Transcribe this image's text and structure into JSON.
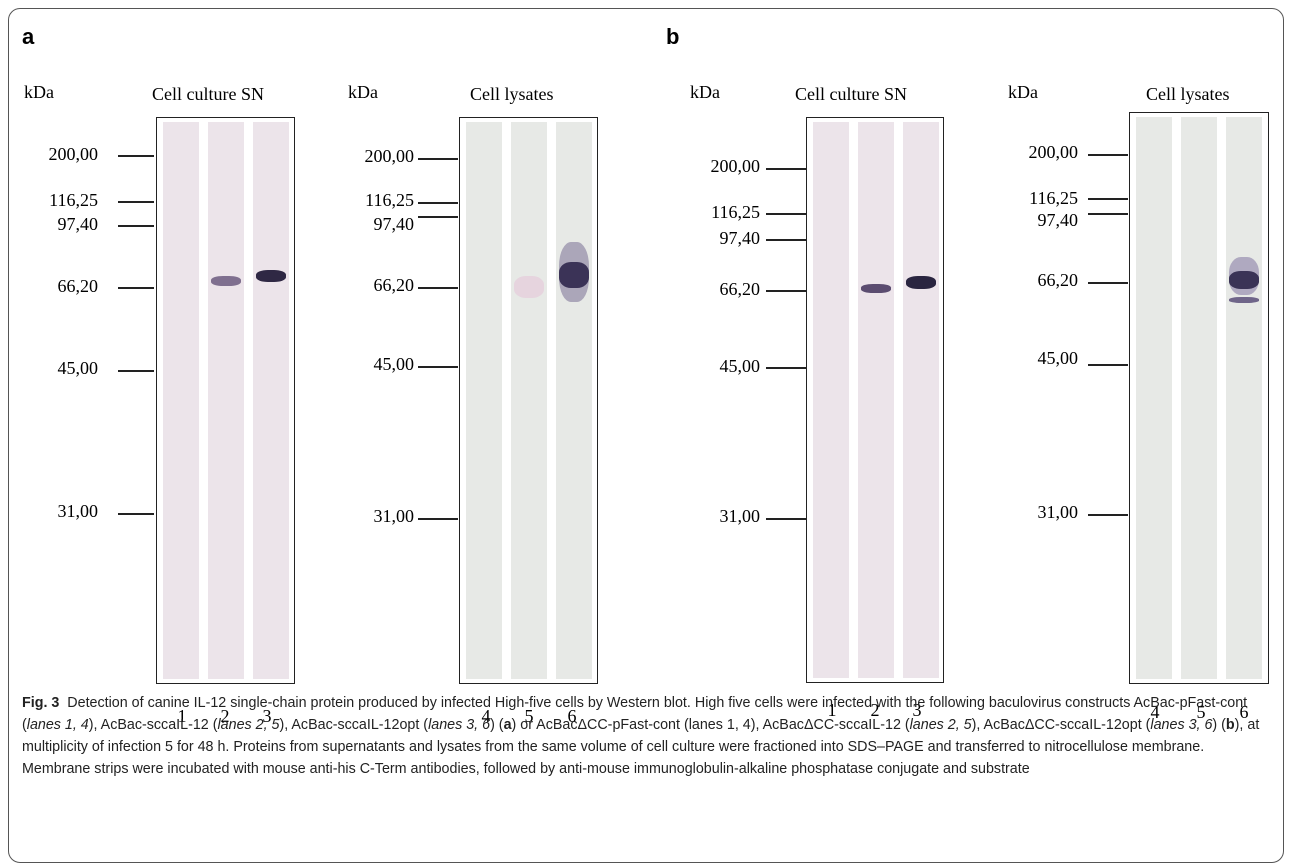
{
  "panels": {
    "a": {
      "label": "a",
      "culture": {
        "kda": "kDa",
        "title": "Cell  culture  SN",
        "markers": [
          "200,00",
          "116,25",
          "97,40",
          "66,20",
          "45,00",
          "31,00"
        ],
        "lanes": [
          "1",
          "2",
          "3"
        ]
      },
      "lysates": {
        "kda": "kDa",
        "title": "Cell  lysates",
        "markers": [
          "200,00",
          "116,25",
          "97,40",
          "66,20",
          "45,00",
          "31,00"
        ],
        "lanes": [
          "4",
          "5",
          "6"
        ]
      }
    },
    "b": {
      "label": "b",
      "culture": {
        "kda": "kDa",
        "title": "Cell  culture  SN",
        "markers": [
          "200,00",
          "116,25",
          "97,40",
          "66,20",
          "45,00",
          "31,00"
        ],
        "lanes": [
          "1",
          "2",
          "3"
        ]
      },
      "lysates": {
        "kda": "kDa",
        "title": "Cell  lysates",
        "markers": [
          "200,00",
          "116,25",
          "97,40",
          "66,20",
          "45,00",
          "31,00"
        ],
        "lanes": [
          "4",
          "5",
          "6"
        ]
      }
    }
  },
  "caption": {
    "fig_label": "Fig. 3",
    "title": "Detection of canine IL-12 single-chain protein produced by infected High-five cells by Western blot.",
    "s1": "High five cells were infected with the following baculovirus constructs AcBac-pFast-cont (",
    "l1": "lanes 1, 4",
    "s2": "), AcBac-sccaIL-12 (",
    "l2": "lanes 2, 5",
    "s3": "), AcBac-sccaIL-12opt (",
    "l3": "lanes 3, 6",
    "s4": ") (",
    "pa": "a",
    "s5": ") or AcBacΔCC-pFast-cont (lanes 1, 4), AcBacΔCC-sccaIL-12 (",
    "l5": "lanes 2, 5",
    "s6": "), AcBacΔCC-sccaIL-12opt (",
    "l6": "lanes 3, 6",
    "s7": ") (",
    "pb": "b",
    "s8": "), at multiplicity of infection 5 for 48 h. Proteins from supernatants and lysates from the same volume of cell culture were fractioned into SDS–PAGE and transferred to nitrocellulose membrane. Membrane strips were incubated with mouse anti-his C-Term antibodies, followed by anti-mouse immunoglobulin-alkaline phosphatase conjugate and substrate"
  }
}
